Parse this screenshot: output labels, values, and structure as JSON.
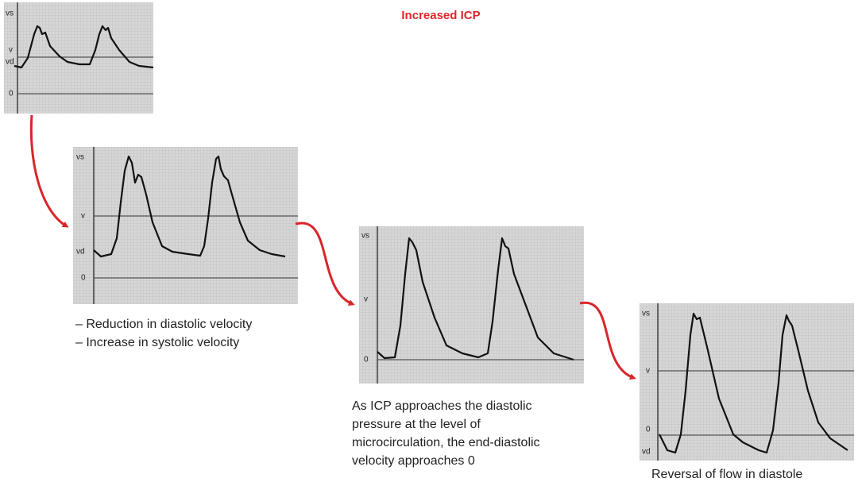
{
  "title": "Increased ICP",
  "panels": [
    {
      "axis_labels": [
        "vs",
        "v",
        "vd",
        "0"
      ],
      "caption": []
    },
    {
      "axis_labels": [
        "vs",
        "v",
        "vd",
        "0"
      ],
      "caption": [
        "– Reduction in diastolic velocity",
        "– Increase in systolic velocity"
      ]
    },
    {
      "axis_labels": [
        "vs",
        "v",
        "0"
      ],
      "caption": [
        "As ICP approaches the diastolic",
        "pressure at the level of",
        "microcirculation, the end-diastolic",
        "velocity approaches 0"
      ]
    },
    {
      "axis_labels": [
        "vs",
        "v",
        "0",
        "vd"
      ],
      "caption": [
        "Reversal of flow in diastole"
      ]
    }
  ]
}
